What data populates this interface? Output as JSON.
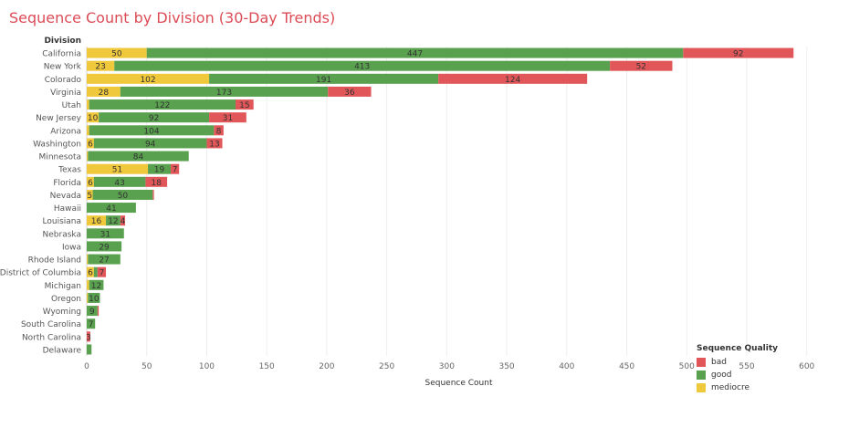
{
  "title": "Sequence Count by Division (30-Day Trends)",
  "colors": {
    "mediocre": "#f0c83c",
    "good": "#59a14f",
    "bad": "#e15759"
  },
  "legend": {
    "title": "Sequence Quality",
    "items": [
      {
        "key": "bad",
        "label": "bad"
      },
      {
        "key": "good",
        "label": "good"
      },
      {
        "key": "mediocre",
        "label": "mediocre"
      }
    ]
  },
  "chart_data": {
    "type": "bar",
    "orientation": "horizontal",
    "stacked": true,
    "title": "Sequence Count by Division (30-Day Trends)",
    "row_header": "Division",
    "xlabel": "Sequence Count",
    "xlim": [
      0,
      620
    ],
    "xticks": [
      0,
      50,
      100,
      150,
      200,
      250,
      300,
      350,
      400,
      450,
      500,
      550,
      600
    ],
    "grid": true,
    "legend_position": "bottom-right",
    "categories": [
      "California",
      "New York",
      "Colorado",
      "Virginia",
      "Utah",
      "New Jersey",
      "Arizona",
      "Washington",
      "Minnesota",
      "Texas",
      "Florida",
      "Nevada",
      "Hawaii",
      "Louisiana",
      "Nebraska",
      "Iowa",
      "Rhode Island",
      "District of Columbia",
      "Michigan",
      "Oregon",
      "Wyoming",
      "South Carolina",
      "North Carolina",
      "Delaware"
    ],
    "series": [
      {
        "name": "mediocre",
        "values": [
          50,
          23,
          102,
          28,
          2,
          10,
          2,
          6,
          1,
          51,
          6,
          5,
          0,
          16,
          0,
          0,
          1,
          6,
          2,
          1,
          0,
          0,
          0,
          0
        ]
      },
      {
        "name": "good",
        "values": [
          447,
          413,
          191,
          173,
          122,
          92,
          104,
          94,
          84,
          19,
          43,
          50,
          41,
          12,
          31,
          29,
          27,
          3,
          12,
          10,
          9,
          7,
          0,
          4
        ]
      },
      {
        "name": "bad",
        "values": [
          92,
          52,
          124,
          36,
          15,
          31,
          8,
          13,
          0,
          7,
          18,
          1,
          0,
          4,
          0,
          0,
          0,
          7,
          0,
          0,
          1,
          0,
          3,
          0
        ]
      }
    ],
    "data_labels": {
      "mediocre": [
        50,
        23,
        102,
        28,
        null,
        10,
        null,
        6,
        null,
        51,
        6,
        5,
        null,
        16,
        null,
        null,
        null,
        6,
        null,
        null,
        null,
        null,
        null,
        null
      ],
      "good": [
        447,
        413,
        191,
        173,
        122,
        92,
        104,
        94,
        84,
        19,
        43,
        50,
        41,
        12,
        31,
        29,
        27,
        null,
        12,
        10,
        9,
        7,
        null,
        null
      ],
      "bad": [
        92,
        52,
        124,
        36,
        15,
        31,
        8,
        13,
        null,
        7,
        18,
        null,
        null,
        4,
        null,
        null,
        null,
        7,
        null,
        null,
        null,
        null,
        3,
        null
      ]
    }
  }
}
